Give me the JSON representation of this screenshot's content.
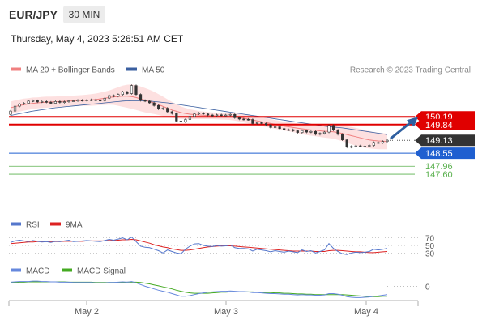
{
  "header": {
    "symbol": "EUR/JPY",
    "timeframe": "30 MIN",
    "datetime": "Thursday, May 4, 2023 5:26:51 AM CET"
  },
  "colors": {
    "ma20": "#f08080",
    "band": "#fde0e0",
    "ma50": "#3a5fa0",
    "resistance": "#e00000",
    "current": "#333333",
    "pivot": "#1f5fd0",
    "support": "#5ab04e",
    "rsi": "#5577cc",
    "ma9": "#dd2222",
    "macd": "#6688dd",
    "macd_signal": "#44aa22",
    "arrow": "#2f5fa0"
  },
  "chart_data": [
    {
      "type": "candlestick",
      "legend": {
        "ma20_label": "MA 20 + Bollinger Bands",
        "ma50_label": "MA 50",
        "copyright": "Research © 2023 Trading Central"
      },
      "x_ticks": [
        "May 2",
        "May 3",
        "May 4"
      ],
      "levels": [
        {
          "value": 150.19,
          "label": "150.19",
          "kind": "resistance"
        },
        {
          "value": 149.84,
          "label": "149.84",
          "kind": "resistance"
        },
        {
          "value": 149.13,
          "label": "149.13",
          "kind": "current"
        },
        {
          "value": 148.55,
          "label": "148.55",
          "kind": "pivot"
        },
        {
          "value": 147.96,
          "label": "147.96",
          "kind": "support"
        },
        {
          "value": 147.6,
          "label": "147.60",
          "kind": "support"
        }
      ],
      "ylim": [
        147.2,
        152.1
      ],
      "close": [
        150.45,
        150.67,
        150.77,
        150.8,
        150.9,
        150.92,
        150.86,
        150.88,
        150.85,
        150.8,
        150.88,
        150.84,
        150.87,
        150.91,
        150.91,
        150.94,
        150.93,
        150.95,
        150.96,
        150.94,
        150.92,
        151.03,
        151.15,
        151.12,
        151.2,
        151.32,
        151.24,
        151.6,
        151.2,
        150.93,
        150.9,
        150.82,
        150.7,
        150.54,
        150.58,
        150.42,
        150.34,
        150.0,
        149.96,
        150.07,
        150.21,
        150.32,
        150.36,
        150.32,
        150.27,
        150.25,
        150.28,
        150.26,
        150.27,
        150.3,
        150.15,
        150.09,
        150.08,
        150.07,
        149.89,
        149.93,
        149.89,
        149.83,
        149.71,
        149.74,
        149.66,
        149.6,
        149.61,
        149.56,
        149.48,
        149.57,
        149.5,
        149.53,
        149.4,
        149.44,
        149.5,
        149.8,
        149.59,
        149.4,
        149.15,
        148.82,
        148.85,
        148.88,
        148.86,
        148.87,
        148.9,
        149.03,
        149.02,
        149.08,
        149.13
      ],
      "open": [
        150.3,
        150.45,
        150.67,
        150.77,
        150.8,
        150.9,
        150.92,
        150.86,
        150.88,
        150.85,
        150.8,
        150.88,
        150.84,
        150.87,
        150.91,
        150.91,
        150.94,
        150.93,
        150.95,
        150.96,
        150.94,
        150.92,
        151.03,
        151.15,
        151.12,
        151.2,
        151.32,
        151.24,
        151.6,
        151.2,
        150.93,
        150.9,
        150.82,
        150.7,
        150.54,
        150.58,
        150.42,
        150.34,
        150.0,
        149.96,
        150.07,
        150.21,
        150.32,
        150.36,
        150.32,
        150.27,
        150.25,
        150.28,
        150.26,
        150.27,
        150.3,
        150.15,
        150.09,
        150.08,
        150.07,
        149.89,
        149.93,
        149.89,
        149.83,
        149.71,
        149.74,
        149.66,
        149.6,
        149.61,
        149.56,
        149.48,
        149.57,
        149.5,
        149.53,
        149.4,
        149.44,
        149.5,
        149.8,
        149.59,
        149.4,
        149.15,
        148.82,
        148.85,
        148.88,
        148.86,
        148.87,
        148.9,
        149.03,
        149.02,
        149.08
      ],
      "ma20": [
        150.6,
        150.65,
        150.7,
        150.74,
        150.77,
        150.8,
        150.82,
        150.84,
        150.85,
        150.86,
        150.87,
        150.88,
        150.89,
        150.9,
        150.91,
        150.92,
        150.93,
        150.94,
        150.95,
        150.97,
        151.0,
        151.03,
        151.06,
        151.09,
        151.11,
        151.12,
        151.12,
        151.1,
        151.06,
        151.0,
        150.94,
        150.88,
        150.82,
        150.74,
        150.66,
        150.58,
        150.5,
        150.44,
        150.38,
        150.34,
        150.31,
        150.29,
        150.27,
        150.26,
        150.25,
        150.24,
        150.23,
        150.22,
        150.21,
        150.2,
        150.18,
        150.15,
        150.12,
        150.09,
        150.05,
        150.01,
        149.97,
        149.93,
        149.89,
        149.85,
        149.81,
        149.77,
        149.74,
        149.71,
        149.68,
        149.65,
        149.62,
        149.6,
        149.58,
        149.56,
        149.54,
        149.53,
        149.51,
        149.48,
        149.44,
        149.39,
        149.34,
        149.29,
        149.24,
        149.19,
        149.15,
        149.12,
        149.1,
        149.09,
        149.08
      ],
      "bb_width": [
        0.28,
        0.28,
        0.27,
        0.27,
        0.26,
        0.26,
        0.25,
        0.25,
        0.25,
        0.24,
        0.24,
        0.24,
        0.24,
        0.24,
        0.24,
        0.24,
        0.24,
        0.25,
        0.26,
        0.27,
        0.28,
        0.3,
        0.32,
        0.36,
        0.42,
        0.48,
        0.52,
        0.55,
        0.56,
        0.56,
        0.55,
        0.53,
        0.5,
        0.47,
        0.44,
        0.4,
        0.36,
        0.32,
        0.28,
        0.25,
        0.22,
        0.2,
        0.18,
        0.17,
        0.16,
        0.15,
        0.15,
        0.15,
        0.15,
        0.15,
        0.16,
        0.17,
        0.18,
        0.19,
        0.2,
        0.2,
        0.2,
        0.2,
        0.2,
        0.2,
        0.2,
        0.2,
        0.2,
        0.21,
        0.22,
        0.24,
        0.25,
        0.26,
        0.27,
        0.28,
        0.29,
        0.3,
        0.31,
        0.33,
        0.35,
        0.37,
        0.39,
        0.4,
        0.4,
        0.4,
        0.39,
        0.38,
        0.37,
        0.36,
        0.35
      ],
      "ma50": [
        150.25,
        150.29,
        150.33,
        150.37,
        150.41,
        150.45,
        150.48,
        150.51,
        150.54,
        150.57,
        150.6,
        150.62,
        150.64,
        150.66,
        150.68,
        150.7,
        150.72,
        150.74,
        150.76,
        150.78,
        150.8,
        150.82,
        150.84,
        150.86,
        150.88,
        150.9,
        150.91,
        150.92,
        150.92,
        150.92,
        150.91,
        150.9,
        150.88,
        150.86,
        150.84,
        150.82,
        150.79,
        150.76,
        150.73,
        150.7,
        150.67,
        150.64,
        150.61,
        150.58,
        150.55,
        150.52,
        150.49,
        150.46,
        150.43,
        150.4,
        150.37,
        150.34,
        150.31,
        150.28,
        150.25,
        150.22,
        150.19,
        150.16,
        150.13,
        150.1,
        150.07,
        150.04,
        150.01,
        149.98,
        149.95,
        149.92,
        149.89,
        149.86,
        149.83,
        149.8,
        149.77,
        149.75,
        149.73,
        149.71,
        149.69,
        149.66,
        149.63,
        149.6,
        149.57,
        149.54,
        149.51,
        149.48,
        149.45,
        149.42,
        149.39
      ]
    },
    {
      "type": "line",
      "legend": {
        "rsi_label": "RSI",
        "ma9_label": "9MA"
      },
      "ticks": [
        {
          "value": 70,
          "label": "70"
        },
        {
          "value": 50,
          "label": "50"
        },
        {
          "value": 30,
          "label": "30"
        }
      ],
      "ylim": [
        20,
        80
      ],
      "rsi": [
        58,
        62,
        64,
        62,
        60,
        63,
        61,
        59,
        60,
        58,
        61,
        60,
        62,
        64,
        60,
        61,
        62,
        63,
        62,
        61,
        60,
        63,
        66,
        64,
        67,
        70,
        65,
        72,
        60,
        48,
        45,
        44,
        40,
        36,
        30,
        38,
        34,
        30,
        28,
        40,
        48,
        54,
        55,
        50,
        48,
        47,
        50,
        48,
        49,
        51,
        44,
        42,
        42,
        41,
        35,
        40,
        38,
        36,
        33,
        36,
        34,
        32,
        35,
        33,
        31,
        38,
        34,
        36,
        30,
        34,
        38,
        55,
        42,
        34,
        28,
        26,
        30,
        32,
        31,
        32,
        34,
        40,
        38,
        40,
        42
      ],
      "ma9": [
        55,
        56,
        57,
        58,
        59,
        59,
        60,
        60,
        60,
        60,
        60,
        60,
        61,
        61,
        61,
        61,
        61,
        62,
        62,
        62,
        62,
        62,
        63,
        63,
        64,
        65,
        65,
        66,
        65,
        62,
        59,
        56,
        52,
        49,
        46,
        44,
        41,
        39,
        37,
        37,
        38,
        40,
        42,
        44,
        46,
        47,
        48,
        49,
        49,
        49,
        48,
        47,
        46,
        45,
        44,
        43,
        42,
        41,
        40,
        39,
        38,
        37,
        36,
        35,
        35,
        35,
        35,
        35,
        34,
        34,
        34,
        36,
        37,
        37,
        36,
        35,
        34,
        33,
        33,
        32,
        31,
        31,
        32,
        33,
        34
      ]
    },
    {
      "type": "line",
      "legend": {
        "macd_label": "MACD",
        "signal_label": "MACD Signal"
      },
      "ticks": [
        {
          "value": 0,
          "label": "0"
        }
      ],
      "ylim": [
        -0.45,
        0.25
      ],
      "macd": [
        0.12,
        0.13,
        0.14,
        0.14,
        0.14,
        0.15,
        0.15,
        0.14,
        0.14,
        0.13,
        0.13,
        0.12,
        0.12,
        0.12,
        0.11,
        0.11,
        0.11,
        0.11,
        0.11,
        0.1,
        0.1,
        0.1,
        0.11,
        0.11,
        0.12,
        0.13,
        0.12,
        0.14,
        0.1,
        0.05,
        0.0,
        -0.04,
        -0.08,
        -0.12,
        -0.15,
        -0.18,
        -0.22,
        -0.26,
        -0.3,
        -0.3,
        -0.28,
        -0.25,
        -0.22,
        -0.2,
        -0.18,
        -0.17,
        -0.16,
        -0.15,
        -0.15,
        -0.14,
        -0.15,
        -0.16,
        -0.16,
        -0.17,
        -0.19,
        -0.19,
        -0.2,
        -0.21,
        -0.22,
        -0.22,
        -0.23,
        -0.24,
        -0.24,
        -0.25,
        -0.26,
        -0.25,
        -0.26,
        -0.26,
        -0.27,
        -0.27,
        -0.26,
        -0.22,
        -0.22,
        -0.24,
        -0.27,
        -0.31,
        -0.33,
        -0.34,
        -0.34,
        -0.33,
        -0.32,
        -0.3,
        -0.29,
        -0.27,
        -0.25
      ],
      "signal": [
        0.11,
        0.11,
        0.12,
        0.12,
        0.13,
        0.13,
        0.13,
        0.13,
        0.13,
        0.13,
        0.13,
        0.13,
        0.13,
        0.12,
        0.12,
        0.12,
        0.12,
        0.12,
        0.12,
        0.11,
        0.11,
        0.11,
        0.11,
        0.11,
        0.11,
        0.11,
        0.12,
        0.12,
        0.12,
        0.11,
        0.09,
        0.07,
        0.04,
        0.01,
        -0.02,
        -0.05,
        -0.08,
        -0.12,
        -0.15,
        -0.18,
        -0.2,
        -0.21,
        -0.21,
        -0.21,
        -0.21,
        -0.2,
        -0.19,
        -0.18,
        -0.18,
        -0.17,
        -0.17,
        -0.17,
        -0.17,
        -0.17,
        -0.17,
        -0.18,
        -0.18,
        -0.19,
        -0.19,
        -0.2,
        -0.2,
        -0.21,
        -0.21,
        -0.22,
        -0.23,
        -0.23,
        -0.24,
        -0.24,
        -0.25,
        -0.25,
        -0.25,
        -0.25,
        -0.25,
        -0.25,
        -0.25,
        -0.26,
        -0.27,
        -0.28,
        -0.29,
        -0.3,
        -0.31,
        -0.31,
        -0.31,
        -0.3,
        -0.3
      ]
    }
  ]
}
